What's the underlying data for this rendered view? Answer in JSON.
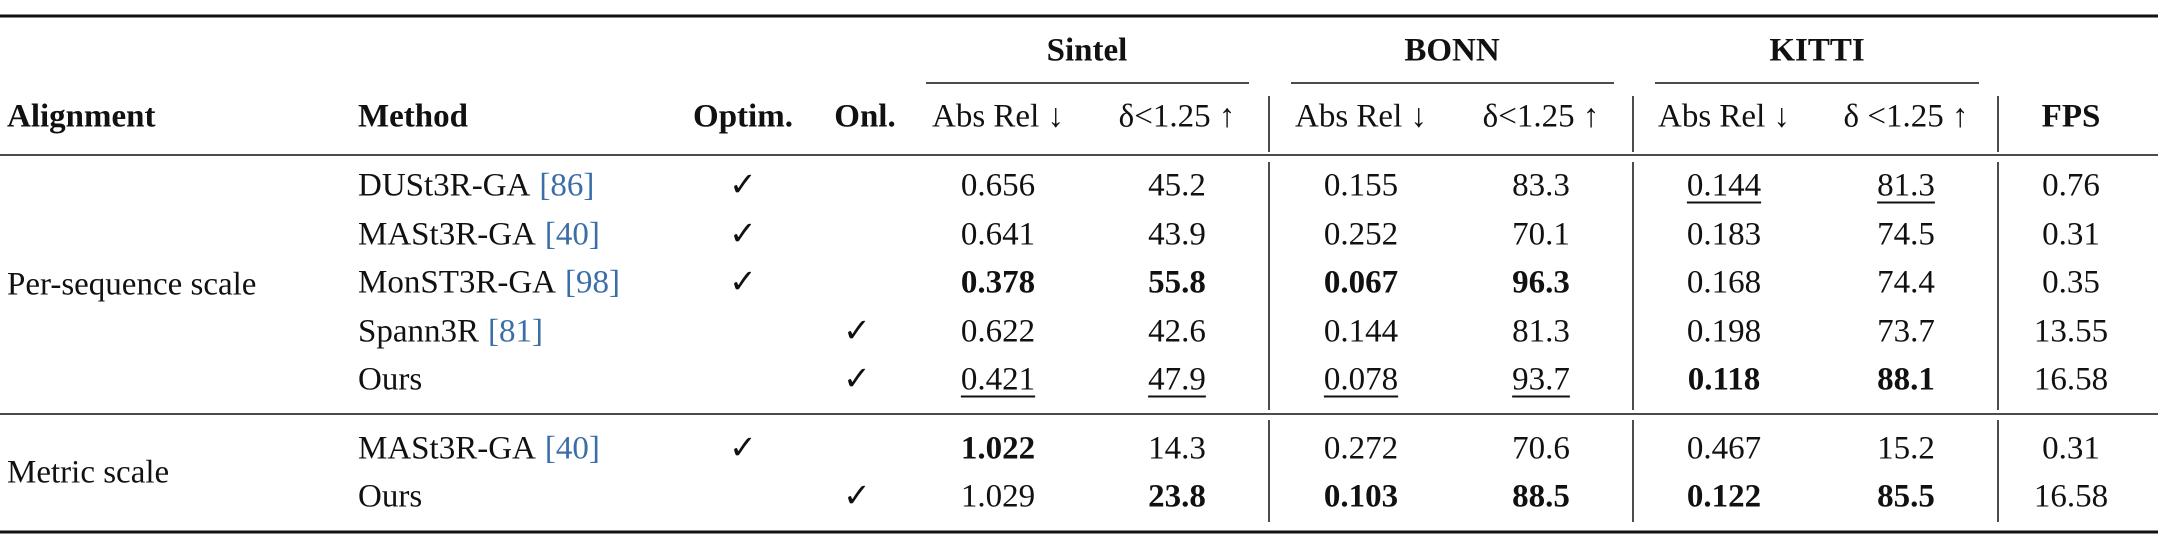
{
  "table": {
    "header": {
      "alignment": "Alignment",
      "method": "Method",
      "optim": "Optim.",
      "online": "Onl.",
      "groups": [
        {
          "name": "Sintel",
          "columns": [
            "Abs Rel ↓",
            "δ<1.25 ↑"
          ]
        },
        {
          "name": "BONN",
          "columns": [
            "Abs Rel ↓",
            "δ<1.25 ↑"
          ]
        },
        {
          "name": "KITTI",
          "columns": [
            "Abs Rel ↓",
            "δ <1.25 ↑"
          ]
        }
      ],
      "fps": "FPS"
    },
    "sections": [
      {
        "alignment": "Per-sequence scale",
        "rows": [
          {
            "method": "DUSt3R-GA",
            "cite": "[86]",
            "optim": "✓",
            "online": null,
            "cells": [
              {
                "text": "0.656"
              },
              {
                "text": "45.2"
              },
              {
                "text": "0.155"
              },
              {
                "text": "83.3"
              },
              {
                "text": "0.144",
                "style": "underline"
              },
              {
                "text": "81.3",
                "style": "underline"
              },
              {
                "text": "0.76"
              }
            ]
          },
          {
            "method": "MASt3R-GA",
            "cite": "[40]",
            "optim": "✓",
            "online": null,
            "cells": [
              {
                "text": "0.641"
              },
              {
                "text": "43.9"
              },
              {
                "text": "0.252"
              },
              {
                "text": "70.1"
              },
              {
                "text": "0.183"
              },
              {
                "text": "74.5"
              },
              {
                "text": "0.31"
              }
            ]
          },
          {
            "method": "MonST3R-GA",
            "cite": "[98]",
            "optim": "✓",
            "online": null,
            "cells": [
              {
                "text": "0.378",
                "style": "bold"
              },
              {
                "text": "55.8",
                "style": "bold"
              },
              {
                "text": "0.067",
                "style": "bold"
              },
              {
                "text": "96.3",
                "style": "bold"
              },
              {
                "text": "0.168"
              },
              {
                "text": "74.4"
              },
              {
                "text": "0.35"
              }
            ]
          },
          {
            "method": "Spann3R",
            "cite": "[81]",
            "optim": null,
            "online": "✓",
            "cells": [
              {
                "text": "0.622"
              },
              {
                "text": "42.6"
              },
              {
                "text": "0.144"
              },
              {
                "text": "81.3"
              },
              {
                "text": "0.198"
              },
              {
                "text": "73.7"
              },
              {
                "text": "13.55"
              }
            ]
          },
          {
            "method": "Ours",
            "cite": null,
            "optim": null,
            "online": "✓",
            "cells": [
              {
                "text": "0.421",
                "style": "underline"
              },
              {
                "text": "47.9",
                "style": "underline"
              },
              {
                "text": "0.078",
                "style": "underline"
              },
              {
                "text": "93.7",
                "style": "underline"
              },
              {
                "text": "0.118",
                "style": "bold"
              },
              {
                "text": "88.1",
                "style": "bold"
              },
              {
                "text": "16.58"
              }
            ]
          }
        ]
      },
      {
        "alignment": "Metric scale",
        "rows": [
          {
            "method": "MASt3R-GA",
            "cite": "[40]",
            "optim": "✓",
            "online": null,
            "cells": [
              {
                "text": "1.022",
                "style": "bold"
              },
              {
                "text": "14.3"
              },
              {
                "text": "0.272"
              },
              {
                "text": "70.6"
              },
              {
                "text": "0.467"
              },
              {
                "text": "15.2"
              },
              {
                "text": "0.31"
              }
            ]
          },
          {
            "method": "Ours",
            "cite": null,
            "optim": null,
            "online": "✓",
            "cells": [
              {
                "text": "1.029"
              },
              {
                "text": "23.8",
                "style": "bold"
              },
              {
                "text": "0.103",
                "style": "bold"
              },
              {
                "text": "88.5",
                "style": "bold"
              },
              {
                "text": "0.122",
                "style": "bold"
              },
              {
                "text": "85.5",
                "style": "bold"
              },
              {
                "text": "16.58"
              }
            ]
          }
        ]
      }
    ]
  }
}
